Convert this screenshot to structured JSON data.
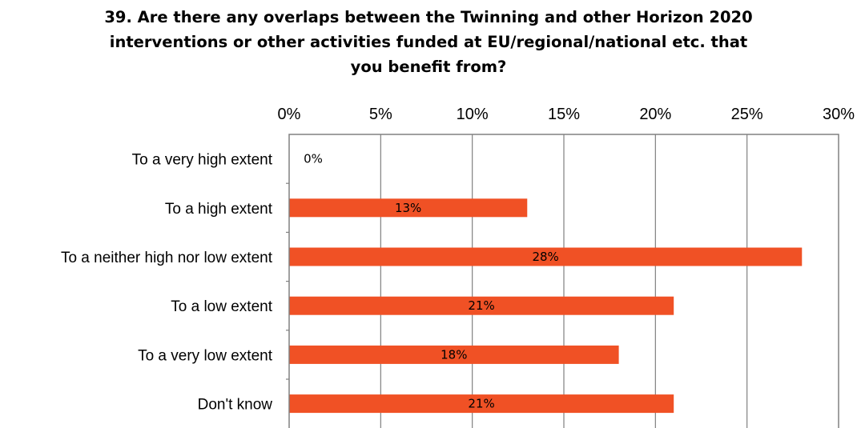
{
  "chart_data": {
    "type": "bar",
    "orientation": "horizontal",
    "title_lines": [
      "39. Are there any overlaps between the Twinning and other Horizon 2020",
      "interventions or other activities funded at  EU/regional/national etc. that",
      "you benefit from?"
    ],
    "categories": [
      "To a very high extent",
      "To a high extent",
      "To a neither high nor low extent",
      "To a low extent",
      "To a very low extent",
      "Don't know"
    ],
    "values": [
      0,
      13,
      28,
      21,
      18,
      21
    ],
    "data_labels": [
      "0%",
      "13%",
      "28%",
      "21%",
      "18%",
      "21%"
    ],
    "xlim": [
      0,
      30
    ],
    "x_ticks": [
      0,
      5,
      10,
      15,
      20,
      25,
      30
    ],
    "x_tick_labels": [
      "0%",
      "5%",
      "10%",
      "15%",
      "20%",
      "25%",
      "30%"
    ],
    "x_axis_position": "top",
    "grid": true,
    "bar_color": "#F05125"
  }
}
